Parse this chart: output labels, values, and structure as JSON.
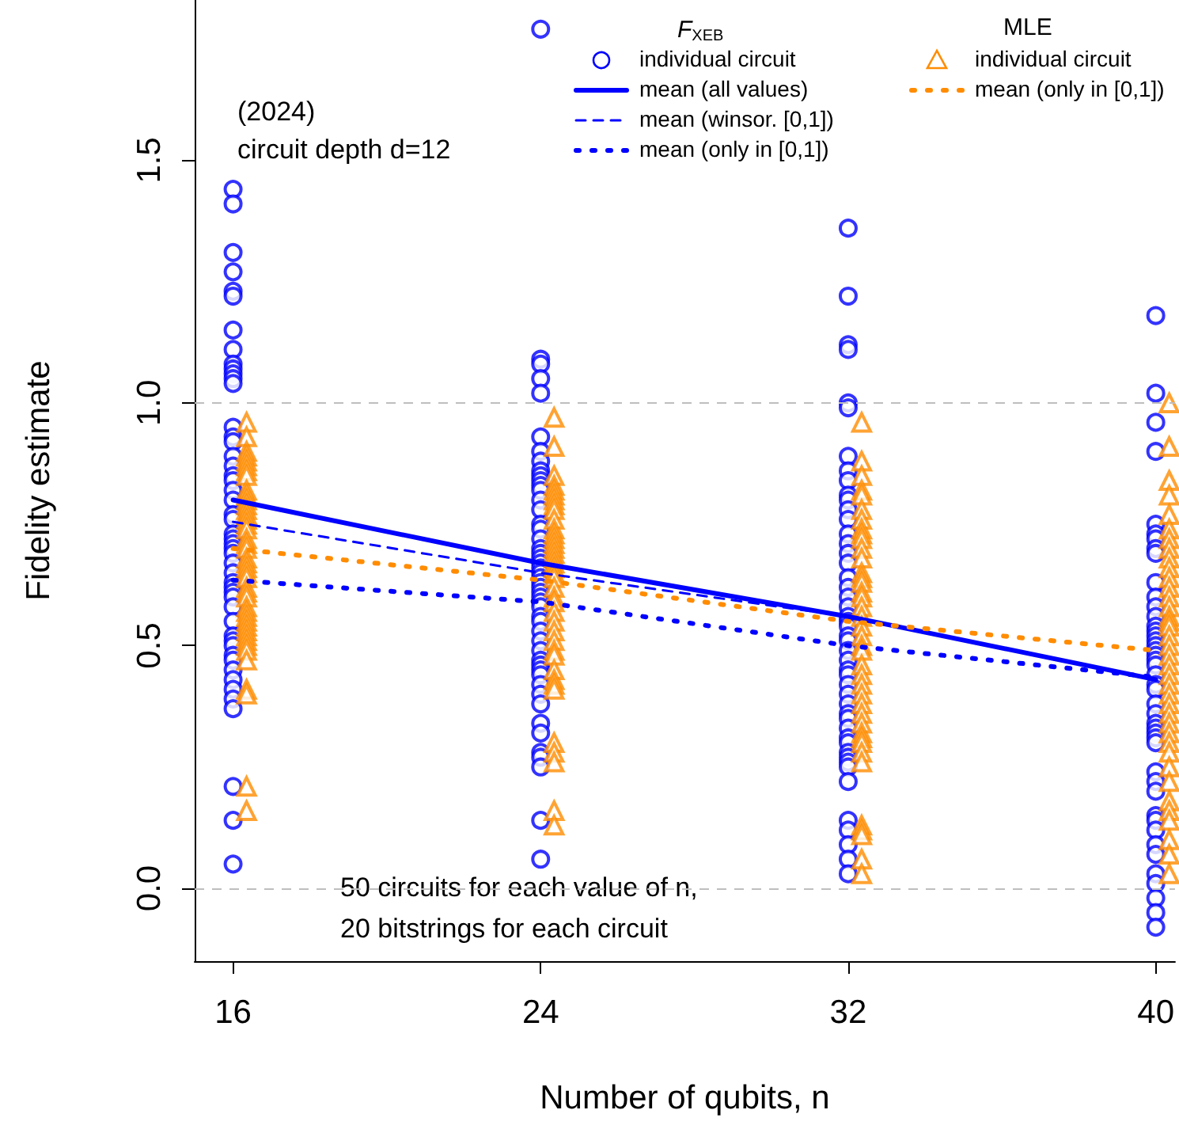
{
  "chart_data": {
    "type": "scatter",
    "xlabel": "Number of qubits, n",
    "ylabel": "Fidelity estimate",
    "annotations": [
      "(2024)",
      "circuit depth d=12",
      "F$_{XEB}$",
      "MLE",
      "50 circuits for each value of n,",
      "20 bitstrings for each circuit"
    ],
    "xlim": [
      15,
      40.5
    ],
    "xticks": [
      16,
      24,
      32,
      40
    ],
    "ylim": [
      -0.15,
      1.83
    ],
    "yticks": [
      {
        "value": 0,
        "label": "0.0"
      },
      {
        "value": 0.5,
        "label": "0.5"
      },
      {
        "value": 1,
        "label": "1.0"
      },
      {
        "value": 1.5,
        "label": "1.5"
      }
    ],
    "grid": false,
    "legend": "top right",
    "ref_lines": [
      {
        "axis": "y",
        "value": 0,
        "label": null,
        "color": "#bebebe",
        "line_style": "dashed"
      },
      {
        "axis": "y",
        "value": 1,
        "label": null,
        "color": "#bebebe",
        "line_style": "dashed"
      }
    ],
    "series": [
      {
        "name": "individual circuit",
        "marker": "circle",
        "color": "#0000ff",
        "x": [
          16,
          16,
          16,
          16,
          16,
          16,
          16,
          16,
          16,
          16,
          16,
          16,
          16,
          16,
          16,
          16,
          16,
          16,
          16,
          16,
          16,
          16,
          16,
          16,
          16,
          16,
          16,
          16,
          16,
          16,
          16,
          16,
          16,
          16,
          16,
          16,
          16,
          16,
          16,
          16,
          16,
          16,
          16,
          16,
          16,
          16,
          16,
          16,
          16,
          16,
          24,
          24,
          24,
          24,
          24,
          24,
          24,
          24,
          24,
          24,
          24,
          24,
          24,
          24,
          24,
          24,
          24,
          24,
          24,
          24,
          24,
          24,
          24,
          24,
          24,
          24,
          24,
          24,
          24,
          24,
          24,
          24,
          24,
          24,
          24,
          24,
          24,
          24,
          24,
          24,
          24,
          24,
          24,
          24,
          24,
          24,
          24,
          24,
          24,
          24,
          32,
          32,
          32,
          32,
          32,
          32,
          32,
          32,
          32,
          32,
          32,
          32,
          32,
          32,
          32,
          32,
          32,
          32,
          32,
          32,
          32,
          32,
          32,
          32,
          32,
          32,
          32,
          32,
          32,
          32,
          32,
          32,
          32,
          32,
          32,
          32,
          32,
          32,
          32,
          32,
          32,
          32,
          32,
          32,
          32,
          32,
          32,
          32,
          40,
          40,
          40,
          40,
          40,
          40,
          40,
          40,
          40,
          40,
          40,
          40,
          40,
          40,
          40,
          40,
          40,
          40,
          40,
          40,
          40,
          40,
          40,
          40,
          40,
          40,
          40,
          40,
          40,
          40,
          40,
          40,
          40,
          40,
          40,
          40,
          40,
          40,
          40,
          40,
          40,
          40,
          40,
          40,
          40
        ],
        "values": [
          1.44,
          1.41,
          1.31,
          1.27,
          1.23,
          1.22,
          1.15,
          1.11,
          1.08,
          1.07,
          1.06,
          1.05,
          1.04,
          0.95,
          0.93,
          0.92,
          0.89,
          0.87,
          0.85,
          0.84,
          0.82,
          0.8,
          0.77,
          0.76,
          0.73,
          0.72,
          0.71,
          0.7,
          0.69,
          0.67,
          0.65,
          0.63,
          0.62,
          0.61,
          0.6,
          0.58,
          0.55,
          0.52,
          0.51,
          0.5,
          0.48,
          0.47,
          0.45,
          0.43,
          0.41,
          0.39,
          0.37,
          0.21,
          0.14,
          0.05,
          1.77,
          1.09,
          1.08,
          1.05,
          1.02,
          0.93,
          0.9,
          0.88,
          0.86,
          0.85,
          0.84,
          0.83,
          0.82,
          0.8,
          0.78,
          0.75,
          0.74,
          0.72,
          0.7,
          0.69,
          0.68,
          0.67,
          0.66,
          0.65,
          0.64,
          0.63,
          0.62,
          0.61,
          0.6,
          0.59,
          0.58,
          0.56,
          0.55,
          0.53,
          0.51,
          0.49,
          0.47,
          0.46,
          0.45,
          0.44,
          0.42,
          0.4,
          0.38,
          0.34,
          0.32,
          0.28,
          0.27,
          0.25,
          0.14,
          0.06,
          1.36,
          1.22,
          1.12,
          1.11,
          1.0,
          0.99,
          0.89,
          0.86,
          0.84,
          0.81,
          0.8,
          0.78,
          0.76,
          0.73,
          0.71,
          0.69,
          0.67,
          0.64,
          0.62,
          0.6,
          0.58,
          0.56,
          0.55,
          0.54,
          0.52,
          0.51,
          0.49,
          0.47,
          0.45,
          0.44,
          0.42,
          0.4,
          0.38,
          0.36,
          0.35,
          0.33,
          0.31,
          0.3,
          0.28,
          0.27,
          0.26,
          0.25,
          0.22,
          0.14,
          0.12,
          0.09,
          0.06,
          0.03,
          1.18,
          1.02,
          0.96,
          0.9,
          0.75,
          0.73,
          0.72,
          0.7,
          0.69,
          0.63,
          0.6,
          0.58,
          0.56,
          0.54,
          0.53,
          0.52,
          0.51,
          0.5,
          0.49,
          0.48,
          0.47,
          0.46,
          0.44,
          0.42,
          0.41,
          0.38,
          0.36,
          0.34,
          0.33,
          0.32,
          0.31,
          0.3,
          0.24,
          0.22,
          0.2,
          0.15,
          0.14,
          0.12,
          0.09,
          0.07,
          0.03,
          0.01,
          -0.02,
          -0.05,
          -0.08
        ]
      },
      {
        "name": "mean (all values)",
        "type": "line",
        "line_style": "solid",
        "color": "#0000ff",
        "x": [
          16,
          24,
          32,
          40
        ],
        "values": [
          0.8,
          0.67,
          0.56,
          0.43
        ]
      },
      {
        "name": "mean (winsor. [0,1])",
        "type": "line",
        "line_style": "dashed",
        "color": "#0000ff",
        "x": [
          16,
          24,
          32,
          40
        ],
        "values": [
          0.755,
          0.65,
          0.56,
          0.43
        ]
      },
      {
        "name": "mean (only in [0,1])",
        "type": "line",
        "line_style": "dotted",
        "color": "#0000ff",
        "x": [
          16,
          24,
          32,
          40
        ],
        "values": [
          0.635,
          0.59,
          0.5,
          0.435
        ]
      },
      {
        "name": "individual circuit",
        "marker": "triangle",
        "color": "#ff8c00",
        "x": [
          16.35,
          16.35,
          16.35,
          16.35,
          16.35,
          16.35,
          16.35,
          16.35,
          16.35,
          16.35,
          16.35,
          16.35,
          16.35,
          16.35,
          16.35,
          16.35,
          16.35,
          16.35,
          16.35,
          16.35,
          16.35,
          16.35,
          16.35,
          16.35,
          16.35,
          16.35,
          16.35,
          16.35,
          16.35,
          16.35,
          16.35,
          16.35,
          16.35,
          16.35,
          16.35,
          16.35,
          16.35,
          16.35,
          16.35,
          16.35,
          16.35,
          16.35,
          16.35,
          24.35,
          24.35,
          24.35,
          24.35,
          24.35,
          24.35,
          24.35,
          24.35,
          24.35,
          24.35,
          24.35,
          24.35,
          24.35,
          24.35,
          24.35,
          24.35,
          24.35,
          24.35,
          24.35,
          24.35,
          24.35,
          24.35,
          24.35,
          24.35,
          24.35,
          24.35,
          24.35,
          24.35,
          24.35,
          24.35,
          24.35,
          24.35,
          24.35,
          24.35,
          24.35,
          24.35,
          24.35,
          24.35,
          24.35,
          32.35,
          32.35,
          32.35,
          32.35,
          32.35,
          32.35,
          32.35,
          32.35,
          32.35,
          32.35,
          32.35,
          32.35,
          32.35,
          32.35,
          32.35,
          32.35,
          32.35,
          32.35,
          32.35,
          32.35,
          32.35,
          32.35,
          32.35,
          32.35,
          32.35,
          32.35,
          32.35,
          32.35,
          32.35,
          32.35,
          32.35,
          32.35,
          32.35,
          32.35,
          32.35,
          32.35,
          32.35,
          32.35,
          32.35,
          32.35,
          40.35,
          40.35,
          40.35,
          40.35,
          40.35,
          40.35,
          40.35,
          40.35,
          40.35,
          40.35,
          40.35,
          40.35,
          40.35,
          40.35,
          40.35,
          40.35,
          40.35,
          40.35,
          40.35,
          40.35,
          40.35,
          40.35,
          40.35,
          40.35,
          40.35,
          40.35,
          40.35,
          40.35,
          40.35,
          40.35,
          40.35,
          40.35,
          40.35,
          40.35,
          40.35,
          40.35,
          40.35,
          40.35
        ],
        "values": [
          0.96,
          0.93,
          0.9,
          0.89,
          0.88,
          0.87,
          0.86,
          0.85,
          0.82,
          0.81,
          0.8,
          0.79,
          0.78,
          0.77,
          0.76,
          0.75,
          0.74,
          0.72,
          0.71,
          0.7,
          0.68,
          0.67,
          0.66,
          0.65,
          0.64,
          0.62,
          0.61,
          0.6,
          0.58,
          0.57,
          0.56,
          0.55,
          0.54,
          0.53,
          0.52,
          0.51,
          0.5,
          0.49,
          0.47,
          0.41,
          0.4,
          0.21,
          0.16,
          0.97,
          0.91,
          0.85,
          0.83,
          0.82,
          0.81,
          0.8,
          0.79,
          0.78,
          0.76,
          0.74,
          0.73,
          0.72,
          0.71,
          0.7,
          0.69,
          0.68,
          0.67,
          0.66,
          0.65,
          0.64,
          0.62,
          0.6,
          0.59,
          0.57,
          0.55,
          0.53,
          0.51,
          0.49,
          0.48,
          0.45,
          0.43,
          0.42,
          0.41,
          0.3,
          0.28,
          0.26,
          0.16,
          0.13,
          0.96,
          0.88,
          0.85,
          0.82,
          0.81,
          0.78,
          0.76,
          0.74,
          0.73,
          0.72,
          0.7,
          0.68,
          0.65,
          0.64,
          0.63,
          0.61,
          0.6,
          0.58,
          0.56,
          0.54,
          0.52,
          0.5,
          0.49,
          0.46,
          0.44,
          0.42,
          0.4,
          0.38,
          0.36,
          0.34,
          0.32,
          0.31,
          0.3,
          0.28,
          0.26,
          0.13,
          0.12,
          0.11,
          0.06,
          0.03,
          1.0,
          0.91,
          0.84,
          0.81,
          0.77,
          0.74,
          0.72,
          0.7,
          0.68,
          0.66,
          0.64,
          0.62,
          0.6,
          0.58,
          0.56,
          0.55,
          0.54,
          0.52,
          0.5,
          0.48,
          0.46,
          0.44,
          0.42,
          0.4,
          0.38,
          0.36,
          0.34,
          0.32,
          0.3,
          0.28,
          0.25,
          0.22,
          0.18,
          0.16,
          0.14,
          0.1,
          0.07,
          0.03
        ]
      },
      {
        "name": "mean (only in [0,1])",
        "type": "line",
        "line_style": "dotted",
        "color": "#ff8c00",
        "x": [
          16,
          24,
          32,
          40
        ],
        "values": [
          0.7,
          0.635,
          0.55,
          0.49
        ]
      }
    ]
  }
}
